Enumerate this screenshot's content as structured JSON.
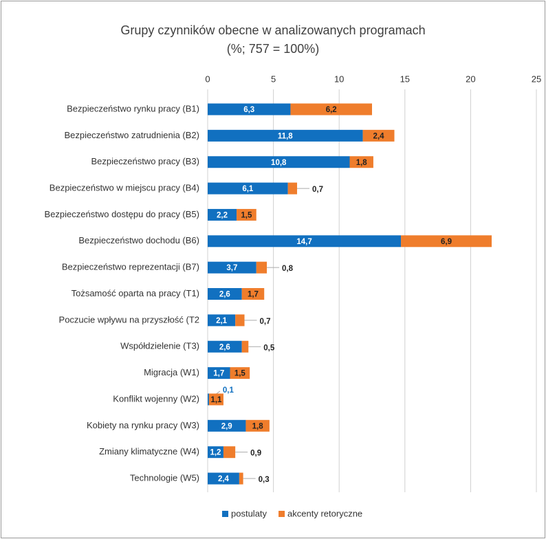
{
  "chart_data": {
    "type": "stacked-barh",
    "title": "Grupy czynników obecne w analizowanych programach",
    "subtitle": "(%; 757 = 100%)",
    "categories": [
      "Bezpieczeństwo rynku pracy (B1)",
      "Bezpieczeństwo zatrudnienia (B2)",
      "Bezpieczeństwo pracy (B3)",
      "Bezpieczeństwo w miejscu pracy (B4)",
      "Bezpieczeństwo dostępu do pracy (B5)",
      "Bezpieczeństwo dochodu (B6)",
      "Bezpieczeństwo reprezentacji (B7)",
      "Tożsamość oparta na pracy (T1)",
      "Poczucie wpływu na przyszłość (T2",
      "Współdzielenie (T3)",
      "Migracja (W1)",
      "Konflikt wojenny (W2)",
      "Kobiety na rynku pracy (W3)",
      "Zmiany klimatyczne (W4)",
      "Technologie (W5)"
    ],
    "series": [
      {
        "name": "postulaty",
        "color": "#1170c0",
        "values": [
          6.3,
          11.8,
          10.8,
          6.1,
          2.2,
          14.7,
          3.7,
          2.6,
          2.1,
          2.6,
          1.7,
          0.1,
          2.9,
          1.2,
          2.4
        ],
        "value_labels": [
          "6,3",
          "11,8",
          "10,8",
          "6,1",
          "2,2",
          "14,7",
          "3,7",
          "2,6",
          "2,1",
          "2,6",
          "1,7",
          "0,1",
          "2,9",
          "1,2",
          "2,4"
        ]
      },
      {
        "name": "akcenty retoryczne",
        "color": "#ef7d2c",
        "values": [
          6.2,
          2.4,
          1.8,
          0.7,
          1.5,
          6.9,
          0.8,
          1.7,
          0.7,
          0.5,
          1.5,
          1.1,
          1.8,
          0.9,
          0.3
        ],
        "value_labels": [
          "6,2",
          "2,4",
          "1,8",
          "0,7",
          "1,5",
          "6,9",
          "0,8",
          "1,7",
          "0,7",
          "0,5",
          "1,5",
          "1,1",
          "1,8",
          "0,9",
          "0,3"
        ]
      }
    ],
    "xlim": [
      0,
      25
    ],
    "xticks": [
      0,
      5,
      10,
      15,
      20,
      25
    ],
    "grid": true,
    "legend": "bottom"
  }
}
